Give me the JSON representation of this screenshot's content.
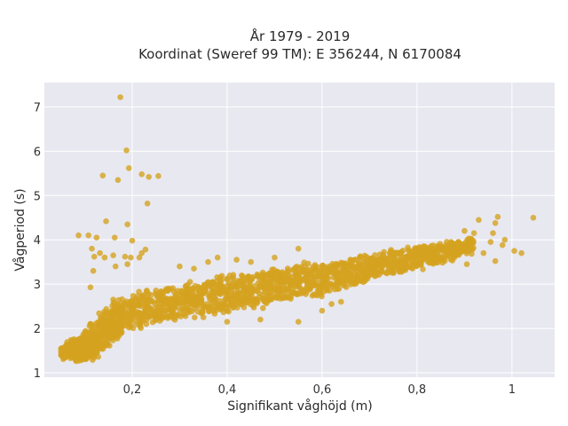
{
  "chart_data": {
    "type": "scatter",
    "title_line1": "År 1979 - 2019",
    "title_line2": "Koordinat (Sweref 99 TM): E 356244, N 6170084",
    "xlabel": "Signifikant våghöjd (m)",
    "ylabel": "Vågperiod (s)",
    "xlim": [
      0.015,
      1.09
    ],
    "ylim": [
      0.9,
      7.55
    ],
    "xticks": [
      0.2,
      0.4,
      0.6,
      0.8,
      1.0
    ],
    "xtick_labels": [
      "0,2",
      "0,4",
      "0,6",
      "0,8",
      "1"
    ],
    "yticks": [
      1,
      2,
      3,
      4,
      5,
      6,
      7
    ],
    "ytick_labels": [
      "1",
      "2",
      "3",
      "4",
      "5",
      "6",
      "7"
    ],
    "grid": true,
    "colors": {
      "marker": "#D4A21F",
      "plot_bg": "#E8E8F0",
      "grid": "#FFFFFF"
    },
    "series": [
      {
        "dense_band": [
          [
            0.05,
            1.45
          ],
          [
            0.06,
            1.5
          ],
          [
            0.07,
            1.55
          ],
          [
            0.08,
            1.5
          ],
          [
            0.09,
            1.55
          ],
          [
            0.1,
            1.6
          ],
          [
            0.11,
            1.7
          ],
          [
            0.12,
            1.75
          ],
          [
            0.13,
            1.9
          ],
          [
            0.14,
            2.0
          ],
          [
            0.15,
            2.1
          ],
          [
            0.16,
            2.2
          ],
          [
            0.17,
            2.25
          ],
          [
            0.18,
            2.3
          ],
          [
            0.2,
            2.4
          ],
          [
            0.22,
            2.45
          ],
          [
            0.24,
            2.5
          ],
          [
            0.26,
            2.55
          ],
          [
            0.28,
            2.6
          ],
          [
            0.3,
            2.6
          ],
          [
            0.32,
            2.65
          ],
          [
            0.34,
            2.7
          ],
          [
            0.36,
            2.75
          ],
          [
            0.38,
            2.8
          ],
          [
            0.4,
            2.8
          ],
          [
            0.42,
            2.85
          ],
          [
            0.44,
            2.9
          ],
          [
            0.46,
            2.9
          ],
          [
            0.48,
            2.95
          ],
          [
            0.5,
            3.0
          ],
          [
            0.52,
            3.0
          ],
          [
            0.54,
            3.05
          ],
          [
            0.56,
            3.1
          ],
          [
            0.58,
            3.1
          ],
          [
            0.6,
            3.15
          ],
          [
            0.62,
            3.2
          ],
          [
            0.64,
            3.25
          ],
          [
            0.66,
            3.3
          ],
          [
            0.68,
            3.35
          ],
          [
            0.7,
            3.4
          ],
          [
            0.72,
            3.45
          ],
          [
            0.74,
            3.5
          ],
          [
            0.76,
            3.5
          ],
          [
            0.78,
            3.55
          ],
          [
            0.8,
            3.6
          ],
          [
            0.82,
            3.65
          ],
          [
            0.84,
            3.7
          ],
          [
            0.86,
            3.75
          ],
          [
            0.88,
            3.8
          ],
          [
            0.9,
            3.85
          ]
        ],
        "band_half_width": [
          0.15,
          0.2,
          0.25,
          0.3,
          0.35,
          0.4,
          0.45,
          0.45,
          0.5,
          0.5,
          0.5,
          0.5,
          0.45,
          0.45,
          0.45,
          0.45,
          0.45,
          0.45,
          0.45,
          0.45,
          0.45,
          0.45,
          0.45,
          0.45,
          0.45,
          0.45,
          0.45,
          0.45,
          0.4,
          0.4,
          0.4,
          0.4,
          0.4,
          0.4,
          0.35,
          0.35,
          0.35,
          0.35,
          0.35,
          0.3,
          0.3,
          0.3,
          0.3,
          0.3,
          0.3,
          0.25,
          0.25,
          0.25,
          0.2,
          0.2
        ],
        "outliers": [
          [
            0.175,
            7.22
          ],
          [
            0.188,
            6.02
          ],
          [
            0.193,
            5.62
          ],
          [
            0.138,
            5.45
          ],
          [
            0.17,
            5.35
          ],
          [
            0.22,
            5.48
          ],
          [
            0.235,
            5.42
          ],
          [
            0.255,
            5.44
          ],
          [
            0.232,
            4.82
          ],
          [
            0.145,
            4.42
          ],
          [
            0.19,
            4.35
          ],
          [
            0.087,
            4.1
          ],
          [
            0.108,
            4.1
          ],
          [
            0.163,
            4.05
          ],
          [
            0.125,
            4.05
          ],
          [
            0.2,
            3.98
          ],
          [
            0.132,
            3.7
          ],
          [
            0.115,
            3.8
          ],
          [
            0.12,
            3.62
          ],
          [
            0.142,
            3.6
          ],
          [
            0.16,
            3.65
          ],
          [
            0.185,
            3.62
          ],
          [
            0.197,
            3.6
          ],
          [
            0.22,
            3.7
          ],
          [
            0.228,
            3.78
          ],
          [
            0.215,
            3.6
          ],
          [
            0.165,
            3.4
          ],
          [
            0.19,
            3.45
          ],
          [
            0.118,
            3.3
          ],
          [
            0.112,
            2.93
          ],
          [
            0.97,
            4.52
          ],
          [
            0.965,
            4.38
          ],
          [
            0.93,
            4.45
          ],
          [
            0.9,
            4.2
          ],
          [
            0.92,
            4.15
          ],
          [
            0.96,
            4.15
          ],
          [
            0.985,
            4.0
          ],
          [
            0.955,
            3.95
          ],
          [
            1.045,
            4.5
          ],
          [
            0.98,
            3.88
          ],
          [
            1.005,
            3.75
          ],
          [
            1.02,
            3.7
          ],
          [
            0.94,
            3.7
          ],
          [
            0.965,
            3.52
          ],
          [
            0.905,
            3.45
          ],
          [
            0.35,
            2.25
          ],
          [
            0.4,
            2.15
          ],
          [
            0.47,
            2.2
          ],
          [
            0.55,
            2.15
          ],
          [
            0.6,
            2.4
          ],
          [
            0.62,
            2.55
          ],
          [
            0.64,
            2.6
          ],
          [
            0.3,
            3.4
          ],
          [
            0.33,
            3.35
          ],
          [
            0.38,
            3.6
          ],
          [
            0.45,
            3.5
          ],
          [
            0.5,
            3.6
          ],
          [
            0.55,
            3.8
          ],
          [
            0.42,
            3.55
          ],
          [
            0.36,
            3.5
          ]
        ]
      }
    ]
  }
}
